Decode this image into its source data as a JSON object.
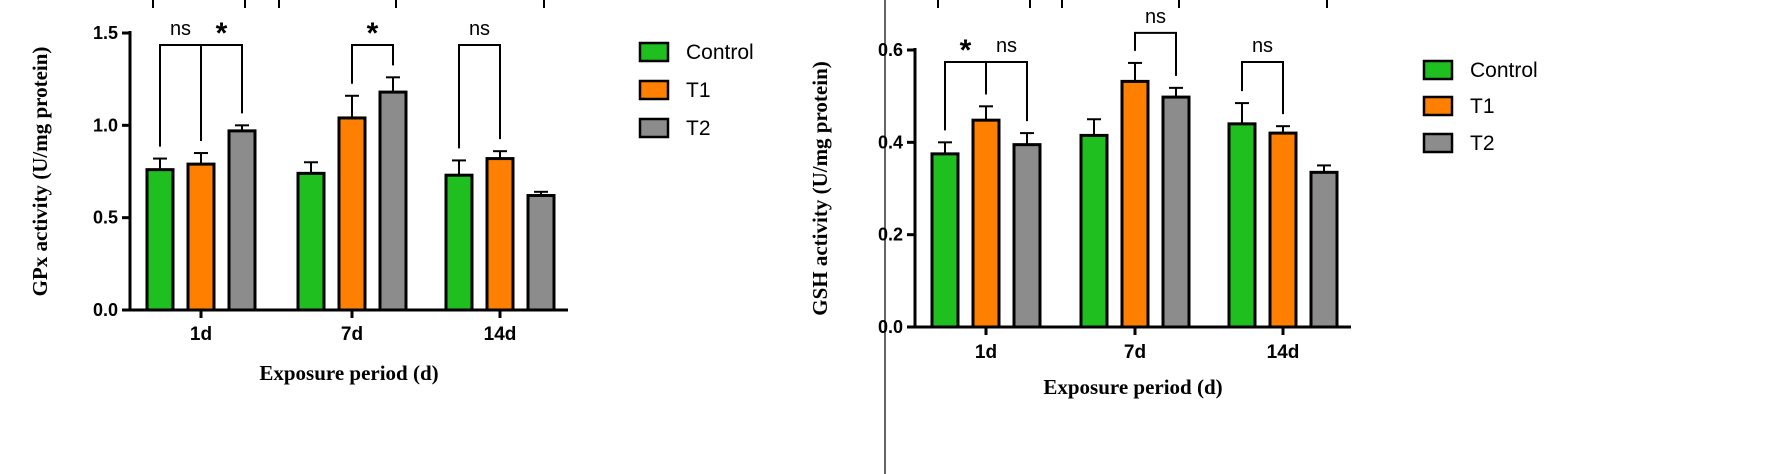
{
  "chart_data": [
    {
      "type": "bar",
      "categories": [
        "1d",
        "7d",
        "14d"
      ],
      "series": [
        {
          "name": "Control",
          "color": "#1fbf1f",
          "values": [
            0.76,
            0.74,
            0.73
          ],
          "errors": [
            0.06,
            0.06,
            0.08
          ]
        },
        {
          "name": "T1",
          "color": "#ff8000",
          "values": [
            0.79,
            1.04,
            0.82
          ],
          "errors": [
            0.06,
            0.12,
            0.04
          ]
        },
        {
          "name": "T2",
          "color": "#8c8c8c",
          "values": [
            0.97,
            1.18,
            0.62
          ],
          "errors": [
            0.03,
            0.08,
            0.02
          ]
        }
      ],
      "xlabel": "Exposure period (d)",
      "ylabel": "GPx activity (U/mg protein)",
      "ylim": [
        0,
        1.5
      ],
      "yticks": [
        "0.0",
        "0.5",
        "1.0",
        "1.5"
      ],
      "ytick_values": [
        0,
        0.5,
        1.0,
        1.5
      ],
      "legend": "right",
      "significance": [
        {
          "category": 0,
          "from": 0,
          "to": 1,
          "label": "ns"
        },
        {
          "category": 0,
          "from": 1,
          "to": 2,
          "label": "*"
        },
        {
          "category": 1,
          "from": 1,
          "to": 2,
          "label": "*"
        },
        {
          "category": 2,
          "from": 0,
          "to": 1,
          "label": "ns"
        }
      ]
    },
    {
      "type": "bar",
      "categories": [
        "1d",
        "7d",
        "14d"
      ],
      "series": [
        {
          "name": "Control",
          "color": "#1fbf1f",
          "values": [
            0.375,
            0.415,
            0.44
          ],
          "errors": [
            0.025,
            0.035,
            0.045
          ]
        },
        {
          "name": "T1",
          "color": "#ff8000",
          "values": [
            0.448,
            0.532,
            0.42
          ],
          "errors": [
            0.03,
            0.04,
            0.015
          ]
        },
        {
          "name": "T2",
          "color": "#8c8c8c",
          "values": [
            0.395,
            0.498,
            0.335
          ],
          "errors": [
            0.025,
            0.02,
            0.015
          ]
        }
      ],
      "xlabel": "Exposure period (d)",
      "ylabel": "GSH activity (U/mg protein)",
      "ylim": [
        0,
        0.6
      ],
      "yticks": [
        "0.0",
        "0.2",
        "0.4",
        "0.6"
      ],
      "ytick_values": [
        0,
        0.2,
        0.4,
        0.6
      ],
      "legend": "right",
      "significance": [
        {
          "category": 0,
          "from": 0,
          "to": 1,
          "label": "*"
        },
        {
          "category": 0,
          "from": 1,
          "to": 2,
          "label": "ns"
        },
        {
          "category": 1,
          "from": 1,
          "to": 2,
          "label": "ns"
        },
        {
          "category": 2,
          "from": 0,
          "to": 1,
          "label": "ns"
        }
      ]
    }
  ]
}
